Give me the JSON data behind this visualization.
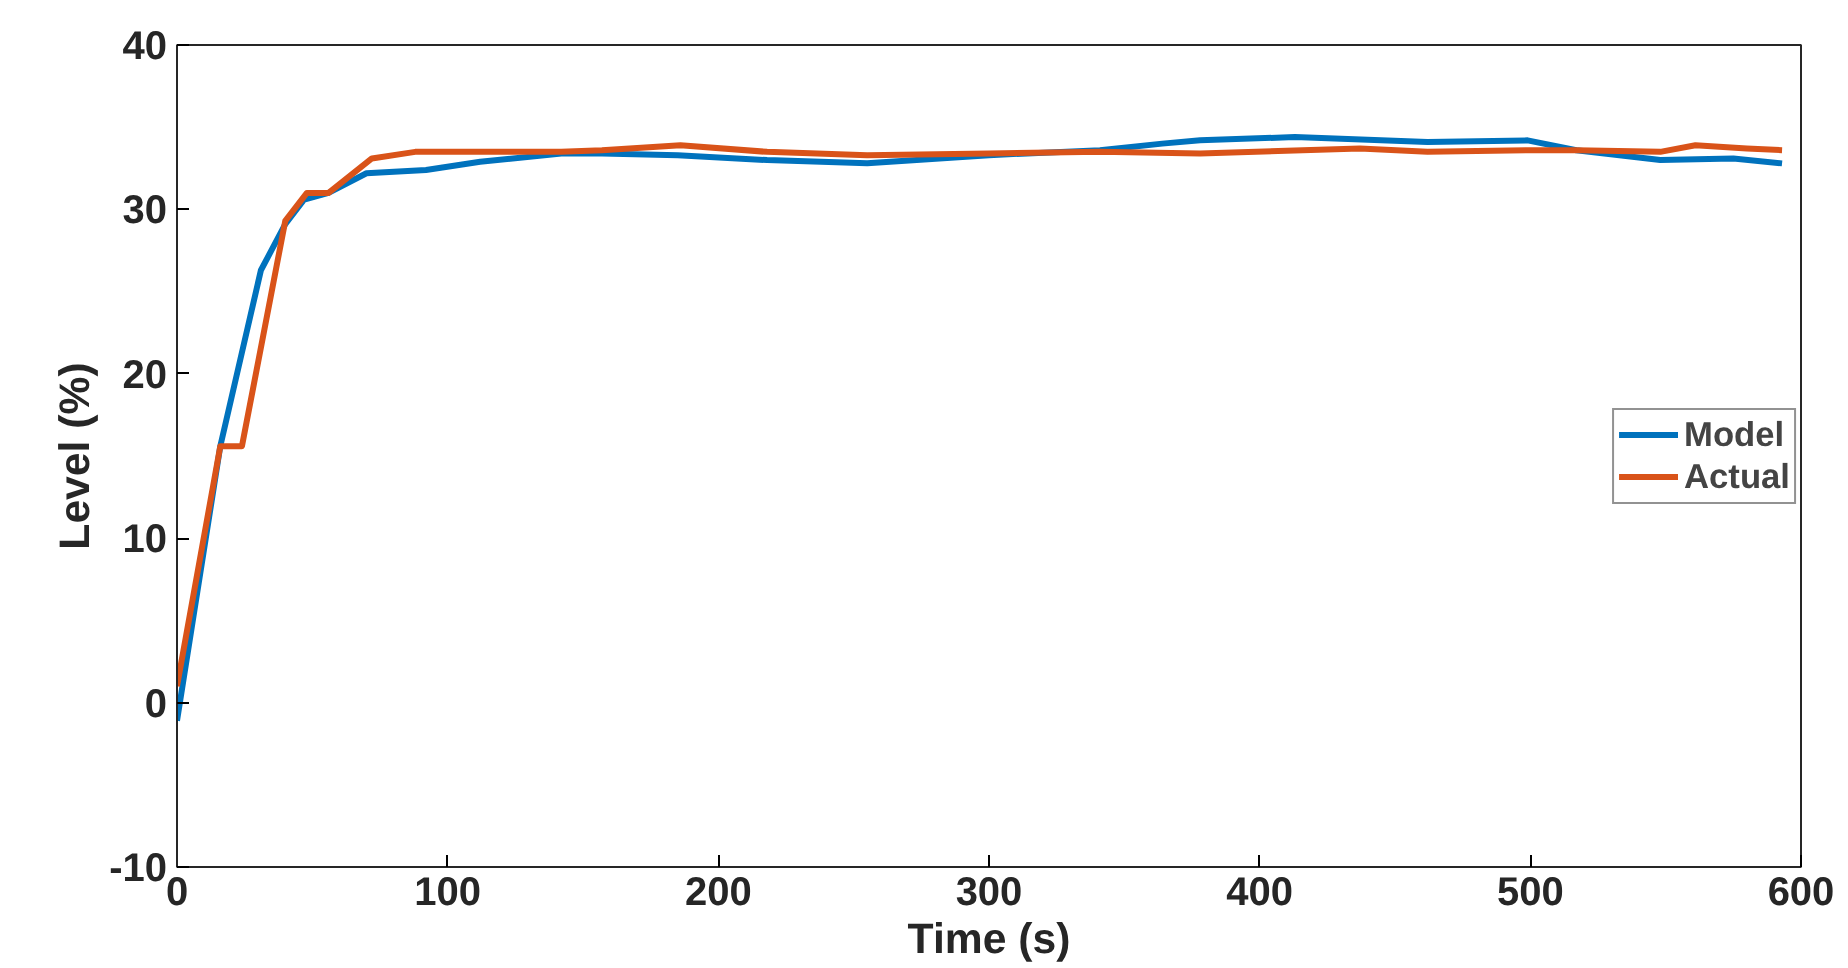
{
  "chart_data": {
    "type": "line",
    "xlabel": "Time (s)",
    "ylabel": "Level (%)",
    "xlim": [
      0,
      600
    ],
    "xticks": [
      0,
      100,
      200,
      300,
      400,
      500,
      600
    ],
    "ylim": [
      -10,
      40
    ],
    "yticks": [
      -10,
      0,
      10,
      20,
      30,
      40
    ],
    "grid": false,
    "legend": "center right",
    "line_style": "solid",
    "series": [
      {
        "name": "Model",
        "color": "#0072bd",
        "x": [
          0,
          16,
          31,
          40,
          47,
          56,
          70,
          92,
          112,
          142,
          157,
          185,
          218,
          255,
          300,
          341,
          364,
          378,
          413,
          462,
          499,
          517,
          548,
          575,
          593
        ],
        "values": [
          -1.1,
          15.6,
          26.3,
          29.1,
          30.6,
          31.0,
          32.2,
          32.4,
          32.9,
          33.4,
          33.4,
          33.3,
          33.0,
          32.8,
          33.3,
          33.6,
          34.0,
          34.2,
          34.4,
          34.1,
          34.2,
          33.6,
          33.0,
          33.1,
          32.8
        ]
      },
      {
        "name": "Actual",
        "color": "#d95319",
        "x": [
          0,
          16,
          24,
          40,
          48,
          56,
          72,
          88,
          142,
          157,
          186,
          218,
          255,
          300,
          341,
          378,
          437,
          462,
          499,
          517,
          548,
          561,
          580,
          593
        ],
        "values": [
          1.0,
          15.6,
          15.6,
          29.3,
          31.0,
          31.0,
          33.1,
          33.5,
          33.5,
          33.6,
          33.9,
          33.5,
          33.3,
          33.4,
          33.5,
          33.4,
          33.7,
          33.5,
          33.6,
          33.6,
          33.5,
          33.9,
          33.7,
          33.6
        ]
      }
    ]
  }
}
